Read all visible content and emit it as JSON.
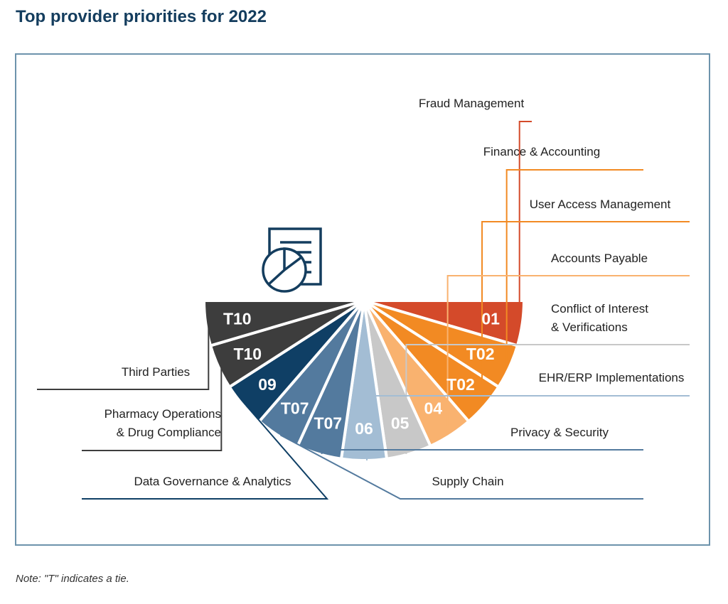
{
  "title": "Top provider priorities for 2022",
  "note": "Note: \"T\" indicates a tie.",
  "icon": "report-pie-chart-icon",
  "chart_data": {
    "type": "pie",
    "title": "Top provider priorities for 2022",
    "slices": [
      {
        "rank": "01",
        "label": [
          "Fraud Management"
        ],
        "color": "#d44a2a"
      },
      {
        "rank": "T02",
        "label": [
          "Finance & Accounting"
        ],
        "color": "#f28a23"
      },
      {
        "rank": "T02",
        "label": [
          "User Access Management"
        ],
        "color": "#f28a23"
      },
      {
        "rank": "04",
        "label": [
          "Accounts Payable"
        ],
        "color": "#f9b26f"
      },
      {
        "rank": "05",
        "label": [
          "Conflict of Interest",
          "& Verifications"
        ],
        "color": "#c8c8c8"
      },
      {
        "rank": "06",
        "label": [
          "EHR/ERP Implementations"
        ],
        "color": "#a3bdd4"
      },
      {
        "rank": "T07",
        "label": [
          "Privacy & Security"
        ],
        "color": "#537a9e"
      },
      {
        "rank": "T07",
        "label": [
          "Supply Chain"
        ],
        "color": "#537a9e"
      },
      {
        "rank": "09",
        "label": [
          "Data Governance & Analytics"
        ],
        "color": "#0f3f65"
      },
      {
        "rank": "T10",
        "label": [
          "Pharmacy Operations",
          "& Drug Compliance"
        ],
        "color": "#3d3d3d"
      },
      {
        "rank": "T10",
        "label": [
          "Third Parties"
        ],
        "color": "#3d3d3d"
      }
    ]
  }
}
